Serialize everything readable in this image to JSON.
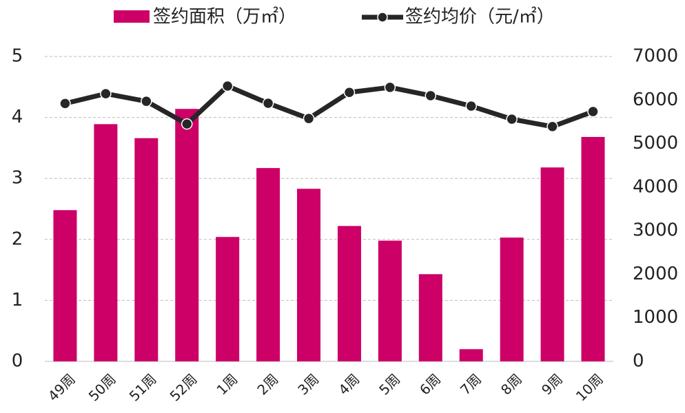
{
  "chart_data": {
    "type": "bar_line",
    "categories": [
      "49周",
      "50周",
      "51周",
      "52周",
      "1周",
      "2周",
      "3周",
      "4周",
      "5周",
      "6周",
      "7周",
      "8周",
      "9周",
      "10周"
    ],
    "series": [
      {
        "name": "签约面积（万㎡）",
        "type": "bar",
        "color": "#cc0066",
        "axis": "y",
        "values": [
          2.48,
          3.89,
          3.66,
          4.14,
          2.04,
          3.17,
          2.83,
          2.22,
          1.98,
          1.43,
          0.2,
          2.03,
          3.18,
          3.68
        ]
      },
      {
        "name": "签约均价（元/㎡）",
        "type": "line",
        "color": "#262626",
        "axis": "y2",
        "values": [
          5920,
          6145,
          5970,
          5450,
          6320,
          5925,
          5575,
          6175,
          6290,
          6100,
          5860,
          5560,
          5390,
          5735
        ]
      }
    ],
    "ylim": [
      0,
      5
    ],
    "yticks": [
      0,
      1,
      2,
      3,
      4,
      5
    ],
    "y2lim": [
      0,
      7000
    ],
    "y2ticks": [
      0,
      1000,
      2000,
      3000,
      4000,
      5000,
      6000,
      7000
    ],
    "grid": true,
    "legend": "top"
  }
}
